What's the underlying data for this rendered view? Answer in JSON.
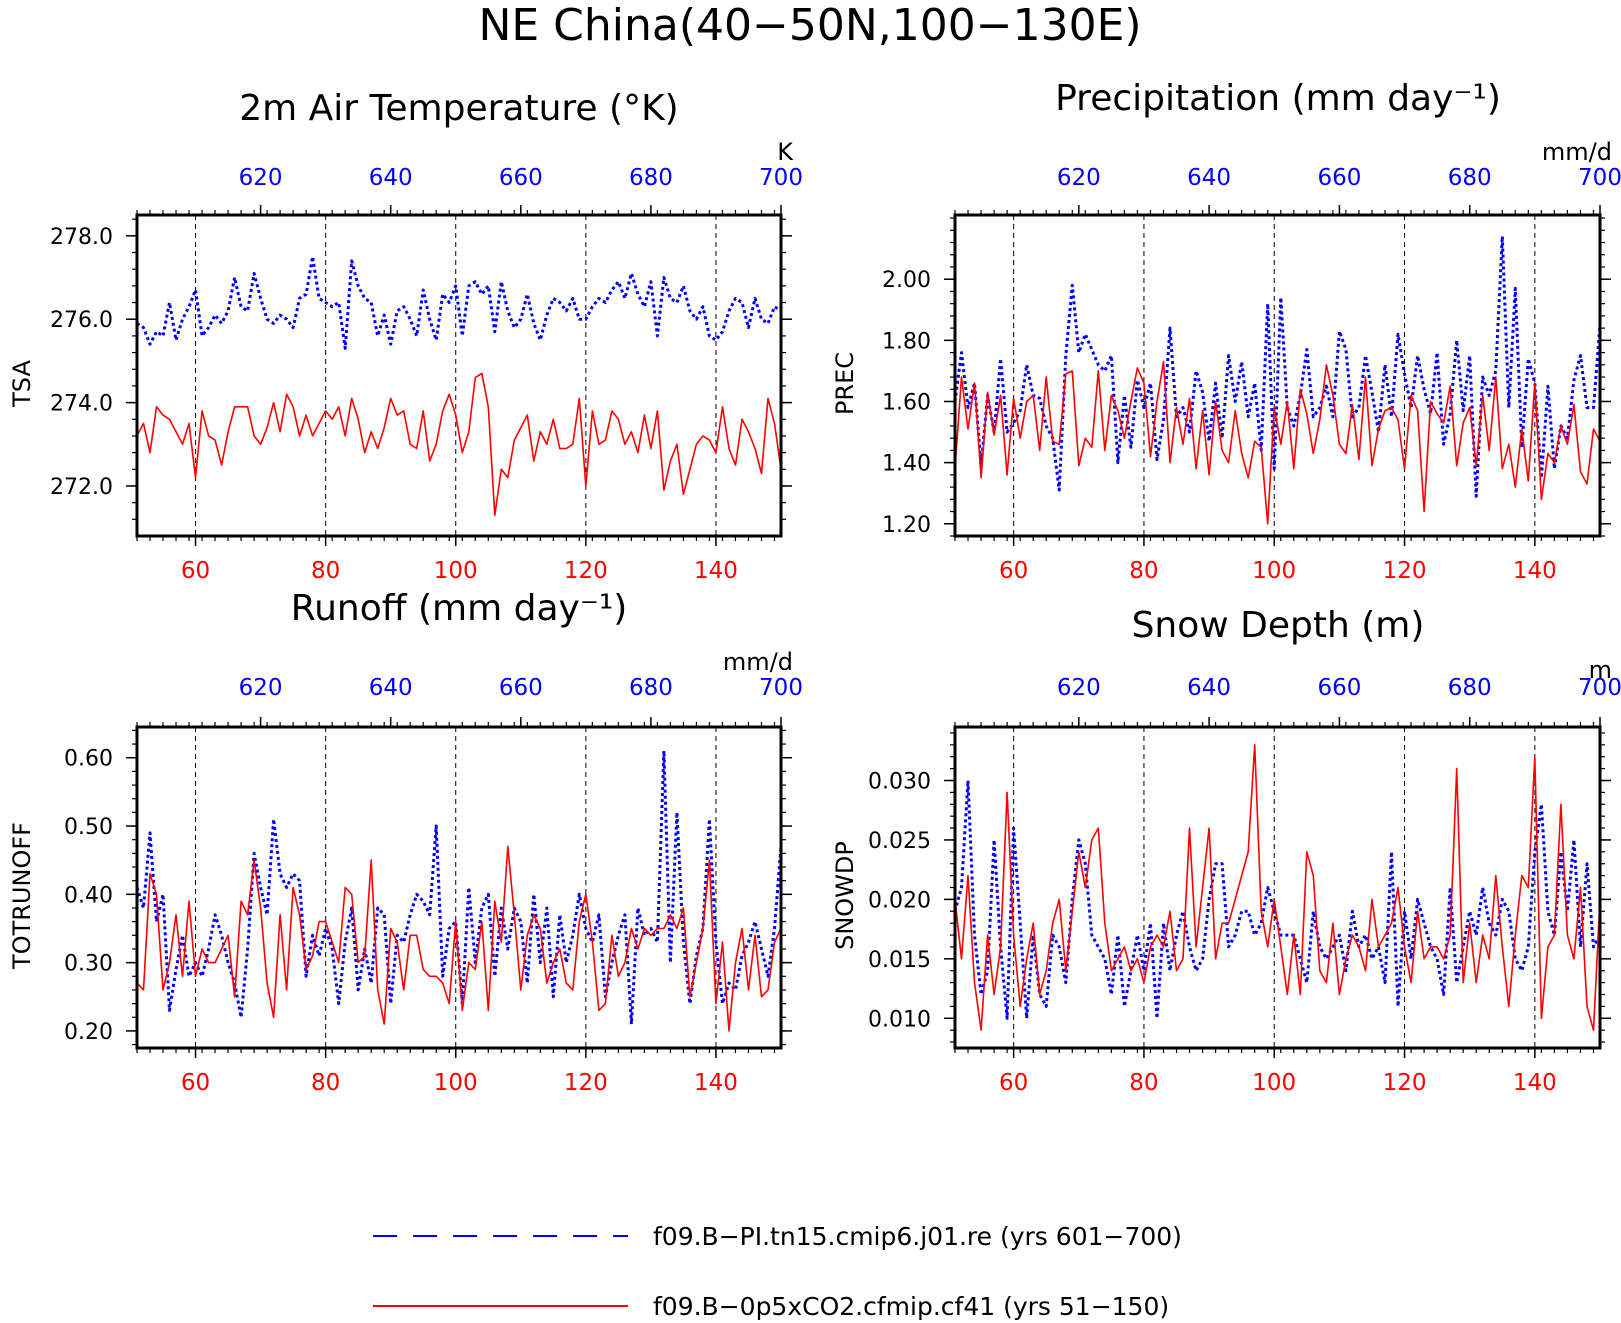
{
  "figure_title": "NE China(40−50N,100−130E)",
  "legend": [
    {
      "label": "f09.B−PI.tn15.cmip6.j01.re (yrs 601−700)",
      "color": "#0000ff",
      "style": "dashed"
    },
    {
      "label": "f09.B−0p5xCO2.cfmip.cf41 (yrs 51−150)",
      "color": "#ff0000",
      "style": "solid"
    }
  ],
  "colors": {
    "pi": "#0000ff",
    "co2": "#ff0000",
    "axis": "#000000",
    "grid": "#000000"
  },
  "chart_data": [
    {
      "type": "line",
      "title": "2m Air Temperature (°K)",
      "ylabel": "TSA",
      "unit": "K",
      "xlim_bottom": [
        51,
        150
      ],
      "xlim_top": [
        601,
        700
      ],
      "xticks_bottom": [
        60,
        80,
        100,
        120,
        140
      ],
      "xticks_top": [
        620,
        640,
        660,
        680,
        700
      ],
      "ylim": [
        270.8,
        278.5
      ],
      "yticks": [
        272.0,
        274.0,
        276.0,
        278.0
      ],
      "ytick_labels": [
        "272.0",
        "274.0",
        "276.0",
        "278.0"
      ],
      "grid_x": [
        60,
        80,
        100,
        120,
        140
      ],
      "series": [
        {
          "key": "pi",
          "values": [
            275.9,
            275.8,
            275.4,
            275.7,
            275.6,
            276.4,
            275.5,
            276.0,
            276.3,
            276.7,
            275.6,
            275.8,
            276.1,
            275.9,
            276.2,
            277.0,
            276.3,
            276.2,
            277.1,
            276.5,
            276.0,
            275.9,
            276.1,
            276.0,
            275.8,
            276.5,
            276.6,
            277.5,
            276.5,
            276.4,
            276.3,
            276.4,
            275.3,
            277.4,
            276.8,
            276.5,
            276.4,
            275.6,
            276.1,
            275.4,
            276.2,
            276.3,
            276.0,
            275.6,
            276.7,
            276.0,
            275.5,
            276.6,
            276.4,
            276.8,
            275.6,
            276.8,
            276.9,
            276.6,
            276.8,
            275.7,
            276.9,
            276.2,
            275.8,
            276.0,
            276.6,
            275.9,
            275.5,
            276.1,
            276.5,
            276.4,
            276.2,
            276.5,
            276.0,
            276.0,
            276.3,
            276.5,
            276.4,
            276.7,
            276.9,
            276.5,
            277.1,
            276.6,
            276.3,
            276.9,
            275.6,
            277.0,
            276.5,
            276.4,
            276.8,
            276.2,
            276.0,
            276.3,
            275.6,
            275.5,
            275.7,
            276.2,
            276.5,
            276.4,
            275.8,
            276.5,
            276.0,
            275.9,
            276.3,
            276.2
          ]
        },
        {
          "key": "co2",
          "values": [
            273.2,
            273.5,
            272.8,
            273.9,
            273.7,
            273.6,
            273.3,
            273.0,
            273.5,
            272.2,
            273.8,
            273.2,
            273.1,
            272.5,
            273.3,
            273.9,
            273.9,
            273.9,
            273.2,
            273.0,
            273.4,
            274.0,
            273.3,
            274.2,
            273.9,
            273.2,
            273.7,
            273.2,
            273.5,
            273.8,
            273.6,
            273.9,
            273.2,
            274.1,
            273.6,
            272.8,
            273.3,
            272.9,
            273.4,
            274.1,
            273.7,
            273.8,
            273.0,
            272.9,
            273.8,
            272.6,
            273.0,
            273.8,
            274.2,
            273.7,
            272.8,
            273.3,
            274.6,
            274.7,
            273.9,
            271.3,
            272.4,
            272.2,
            273.1,
            273.4,
            273.7,
            272.6,
            273.3,
            273.0,
            273.6,
            272.9,
            272.9,
            273.0,
            274.1,
            272.0,
            273.8,
            273.0,
            273.1,
            273.8,
            273.6,
            273.0,
            273.3,
            272.8,
            273.7,
            272.9,
            273.8,
            271.9,
            272.6,
            273.0,
            271.8,
            272.4,
            273.0,
            273.2,
            273.1,
            272.8,
            273.9,
            272.9,
            272.5,
            273.6,
            273.3,
            272.9,
            272.3,
            274.1,
            273.5,
            272.4
          ]
        }
      ]
    },
    {
      "type": "line",
      "title": "Precipitation (mm day⁻¹)",
      "ylabel": "PREC",
      "unit": "mm/d",
      "xlim_bottom": [
        51,
        150
      ],
      "xlim_top": [
        601,
        700
      ],
      "xticks_bottom": [
        60,
        80,
        100,
        120,
        140
      ],
      "xticks_top": [
        620,
        640,
        660,
        680,
        700
      ],
      "ylim": [
        1.16,
        2.21
      ],
      "yticks": [
        1.2,
        1.4,
        1.6,
        1.8,
        2.0
      ],
      "ytick_labels": [
        "1.20",
        "1.40",
        "1.60",
        "1.80",
        "2.00"
      ],
      "grid_x": [
        60,
        80,
        100,
        120,
        140
      ],
      "series": [
        {
          "key": "pi",
          "values": [
            1.6,
            1.76,
            1.58,
            1.66,
            1.39,
            1.62,
            1.5,
            1.74,
            1.5,
            1.53,
            1.57,
            1.72,
            1.62,
            1.61,
            1.52,
            1.48,
            1.31,
            1.75,
            1.98,
            1.76,
            1.82,
            1.77,
            1.72,
            1.7,
            1.75,
            1.4,
            1.62,
            1.45,
            1.67,
            1.58,
            1.66,
            1.41,
            1.54,
            1.84,
            1.55,
            1.58,
            1.5,
            1.7,
            1.63,
            1.47,
            1.66,
            1.48,
            1.75,
            1.6,
            1.73,
            1.55,
            1.66,
            1.44,
            1.92,
            1.38,
            1.94,
            1.58,
            1.52,
            1.62,
            1.77,
            1.55,
            1.58,
            1.65,
            1.55,
            1.83,
            1.77,
            1.55,
            1.58,
            1.75,
            1.63,
            1.5,
            1.72,
            1.55,
            1.82,
            1.69,
            1.58,
            1.75,
            1.64,
            1.56,
            1.76,
            1.46,
            1.56,
            1.8,
            1.57,
            1.75,
            1.29,
            1.68,
            1.62,
            1.7,
            2.14,
            1.58,
            1.97,
            1.45,
            1.74,
            1.66,
            1.35,
            1.65,
            1.38,
            1.52,
            1.48,
            1.67,
            1.75,
            1.58,
            1.58,
            1.85
          ]
        },
        {
          "key": "co2",
          "values": [
            1.38,
            1.68,
            1.51,
            1.66,
            1.35,
            1.63,
            1.49,
            1.62,
            1.36,
            1.61,
            1.48,
            1.6,
            1.62,
            1.44,
            1.68,
            1.47,
            1.46,
            1.69,
            1.7,
            1.39,
            1.48,
            1.45,
            1.7,
            1.44,
            1.62,
            1.57,
            1.48,
            1.6,
            1.71,
            1.66,
            1.42,
            1.6,
            1.73,
            1.4,
            1.58,
            1.46,
            1.61,
            1.38,
            1.57,
            1.36,
            1.6,
            1.44,
            1.4,
            1.57,
            1.43,
            1.35,
            1.47,
            1.45,
            1.2,
            1.58,
            1.46,
            1.6,
            1.38,
            1.64,
            1.56,
            1.43,
            1.54,
            1.72,
            1.62,
            1.46,
            1.43,
            1.59,
            1.41,
            1.68,
            1.39,
            1.51,
            1.57,
            1.58,
            1.54,
            1.38,
            1.62,
            1.57,
            1.24,
            1.6,
            1.56,
            1.53,
            1.65,
            1.39,
            1.53,
            1.58,
            1.39,
            1.62,
            1.44,
            1.68,
            1.38,
            1.46,
            1.32,
            1.51,
            1.34,
            1.66,
            1.28,
            1.43,
            1.4,
            1.52,
            1.46,
            1.59,
            1.37,
            1.33,
            1.51,
            1.47
          ]
        }
      ]
    },
    {
      "type": "line",
      "title": "Runoff (mm day⁻¹)",
      "ylabel": "TOTRUNOFF",
      "unit": "mm/d",
      "xlim_bottom": [
        51,
        150
      ],
      "xlim_top": [
        601,
        700
      ],
      "xticks_bottom": [
        60,
        80,
        100,
        120,
        140
      ],
      "xticks_top": [
        620,
        640,
        660,
        680,
        700
      ],
      "ylim": [
        0.175,
        0.645
      ],
      "yticks": [
        0.2,
        0.3,
        0.4,
        0.5,
        0.6
      ],
      "ytick_labels": [
        "0.20",
        "0.30",
        "0.40",
        "0.50",
        "0.60"
      ],
      "grid_x": [
        60,
        80,
        100,
        120,
        140
      ],
      "series": [
        {
          "key": "pi",
          "values": [
            0.41,
            0.38,
            0.49,
            0.36,
            0.4,
            0.23,
            0.29,
            0.34,
            0.28,
            0.3,
            0.28,
            0.32,
            0.37,
            0.34,
            0.3,
            0.27,
            0.22,
            0.32,
            0.46,
            0.41,
            0.37,
            0.51,
            0.43,
            0.41,
            0.43,
            0.42,
            0.28,
            0.34,
            0.31,
            0.35,
            0.32,
            0.24,
            0.33,
            0.38,
            0.26,
            0.32,
            0.27,
            0.38,
            0.37,
            0.24,
            0.34,
            0.33,
            0.37,
            0.4,
            0.39,
            0.37,
            0.5,
            0.28,
            0.35,
            0.36,
            0.24,
            0.41,
            0.3,
            0.38,
            0.4,
            0.28,
            0.38,
            0.32,
            0.38,
            0.36,
            0.27,
            0.4,
            0.3,
            0.38,
            0.25,
            0.37,
            0.3,
            0.34,
            0.4,
            0.35,
            0.33,
            0.37,
            0.25,
            0.3,
            0.34,
            0.37,
            0.21,
            0.38,
            0.34,
            0.35,
            0.33,
            0.61,
            0.3,
            0.52,
            0.33,
            0.24,
            0.31,
            0.35,
            0.51,
            0.33,
            0.24,
            0.27,
            0.26,
            0.31,
            0.33,
            0.36,
            0.32,
            0.28,
            0.35,
            0.47
          ]
        },
        {
          "key": "co2",
          "values": [
            0.27,
            0.26,
            0.43,
            0.4,
            0.26,
            0.3,
            0.37,
            0.28,
            0.39,
            0.28,
            0.32,
            0.3,
            0.3,
            0.32,
            0.34,
            0.25,
            0.39,
            0.37,
            0.45,
            0.38,
            0.27,
            0.22,
            0.37,
            0.26,
            0.41,
            0.37,
            0.29,
            0.31,
            0.36,
            0.36,
            0.33,
            0.3,
            0.41,
            0.4,
            0.3,
            0.31,
            0.45,
            0.26,
            0.21,
            0.35,
            0.33,
            0.26,
            0.34,
            0.34,
            0.29,
            0.28,
            0.28,
            0.27,
            0.24,
            0.36,
            0.23,
            0.3,
            0.29,
            0.36,
            0.23,
            0.39,
            0.33,
            0.47,
            0.37,
            0.26,
            0.34,
            0.37,
            0.35,
            0.27,
            0.3,
            0.32,
            0.27,
            0.26,
            0.36,
            0.4,
            0.33,
            0.23,
            0.24,
            0.34,
            0.28,
            0.3,
            0.35,
            0.32,
            0.35,
            0.34,
            0.35,
            0.35,
            0.37,
            0.35,
            0.38,
            0.25,
            0.3,
            0.35,
            0.45,
            0.24,
            0.33,
            0.2,
            0.3,
            0.35,
            0.26,
            0.34,
            0.25,
            0.26,
            0.33,
            0.35
          ]
        }
      ]
    },
    {
      "type": "line",
      "title": "Snow Depth (m)",
      "ylabel": "SNOWDP",
      "unit": "m",
      "xlim_bottom": [
        51,
        150
      ],
      "xlim_top": [
        601,
        700
      ],
      "xticks_bottom": [
        60,
        80,
        100,
        120,
        140
      ],
      "xticks_top": [
        620,
        640,
        660,
        680,
        700
      ],
      "ylim": [
        0.0075,
        0.0345
      ],
      "yticks": [
        0.01,
        0.015,
        0.02,
        0.025,
        0.03
      ],
      "ytick_labels": [
        "0.010",
        "0.015",
        "0.020",
        "0.025",
        "0.030"
      ],
      "grid_x": [
        60,
        80,
        100,
        120,
        140
      ],
      "series": [
        {
          "key": "pi",
          "values": [
            0.019,
            0.021,
            0.03,
            0.017,
            0.012,
            0.014,
            0.025,
            0.016,
            0.01,
            0.026,
            0.018,
            0.01,
            0.017,
            0.012,
            0.011,
            0.017,
            0.016,
            0.013,
            0.02,
            0.025,
            0.023,
            0.017,
            0.016,
            0.015,
            0.012,
            0.017,
            0.011,
            0.014,
            0.017,
            0.014,
            0.018,
            0.01,
            0.018,
            0.014,
            0.017,
            0.019,
            0.016,
            0.014,
            0.015,
            0.02,
            0.023,
            0.023,
            0.016,
            0.017,
            0.019,
            0.019,
            0.017,
            0.018,
            0.021,
            0.019,
            0.017,
            0.017,
            0.017,
            0.015,
            0.013,
            0.019,
            0.016,
            0.015,
            0.016,
            0.017,
            0.014,
            0.019,
            0.016,
            0.017,
            0.015,
            0.016,
            0.013,
            0.024,
            0.011,
            0.019,
            0.015,
            0.02,
            0.018,
            0.016,
            0.015,
            0.012,
            0.021,
            0.013,
            0.016,
            0.019,
            0.017,
            0.021,
            0.018,
            0.017,
            0.02,
            0.019,
            0.015,
            0.014,
            0.016,
            0.024,
            0.028,
            0.019,
            0.017,
            0.024,
            0.019,
            0.025,
            0.016,
            0.023,
            0.016,
            0.017
          ]
        },
        {
          "key": "co2",
          "values": [
            0.02,
            0.015,
            0.022,
            0.013,
            0.009,
            0.017,
            0.012,
            0.016,
            0.029,
            0.017,
            0.011,
            0.015,
            0.018,
            0.012,
            0.014,
            0.018,
            0.02,
            0.014,
            0.019,
            0.024,
            0.021,
            0.025,
            0.026,
            0.018,
            0.014,
            0.015,
            0.016,
            0.014,
            0.015,
            0.013,
            0.016,
            0.017,
            0.016,
            0.019,
            0.014,
            0.015,
            0.026,
            0.016,
            0.021,
            0.026,
            0.015,
            0.018,
            0.018,
            0.02,
            0.022,
            0.024,
            0.033,
            0.019,
            0.016,
            0.02,
            0.016,
            0.012,
            0.017,
            0.012,
            0.024,
            0.022,
            0.014,
            0.013,
            0.018,
            0.012,
            0.015,
            0.017,
            0.016,
            0.014,
            0.02,
            0.016,
            0.017,
            0.018,
            0.021,
            0.016,
            0.013,
            0.019,
            0.015,
            0.016,
            0.016,
            0.015,
            0.017,
            0.031,
            0.013,
            0.018,
            0.013,
            0.017,
            0.015,
            0.022,
            0.016,
            0.011,
            0.017,
            0.022,
            0.021,
            0.032,
            0.01,
            0.016,
            0.017,
            0.028,
            0.017,
            0.015,
            0.021,
            0.011,
            0.009,
            0.02
          ]
        }
      ]
    }
  ]
}
